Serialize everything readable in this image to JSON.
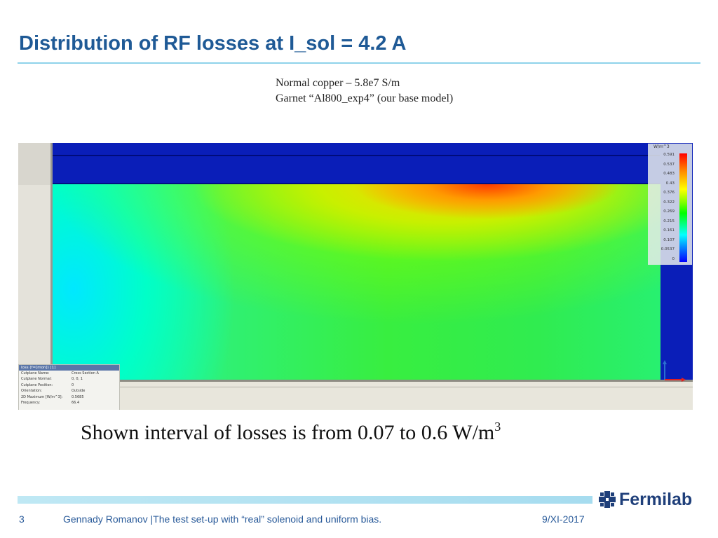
{
  "slide": {
    "title": "Distribution of RF losses at I_sol = 4.2 A",
    "notes": [
      "Normal copper – 5.8e7 S/m",
      "Garnet “Al800_exp4” (our base model)"
    ],
    "caption_main": "Shown interval of losses is from 0.07 to 0.6 W/m",
    "caption_sup": "3"
  },
  "simulation": {
    "legend": {
      "unit": "W/m^3",
      "ticks": [
        "0.591",
        "0.537",
        "0.483",
        "0.43",
        "0.376",
        "0.322",
        "0.269",
        "0.215",
        "0.161",
        "0.107",
        "0.0537",
        "0"
      ]
    },
    "info_panel": {
      "header": "loss (f=[mon]) [1]",
      "rows": [
        {
          "key": "Cutplane Name:",
          "value": "Cross Section A"
        },
        {
          "key": "Cutplane Normal:",
          "value": "0, 0, 1"
        },
        {
          "key": "Cutplane Position:",
          "value": "0"
        },
        {
          "key": "Orientation:",
          "value": "Outside"
        },
        {
          "key": "2D Maximum [W/m^3]:",
          "value": "0.5685"
        },
        {
          "key": "Frequency:",
          "value": "66.4"
        }
      ]
    },
    "colors": {
      "copper_blue": "#0a1eb8",
      "hot": "#ff3a00",
      "field_green": "#38ee40",
      "cool": "#00e8ff"
    }
  },
  "footer": {
    "page_number": "3",
    "text": "Gennady Romanov |The test set-up with “real” solenoid and uniform bias.",
    "date": "9/XI-2017",
    "logo_text": "Fermilab",
    "logo_icon": "fermilab-logo-icon"
  }
}
